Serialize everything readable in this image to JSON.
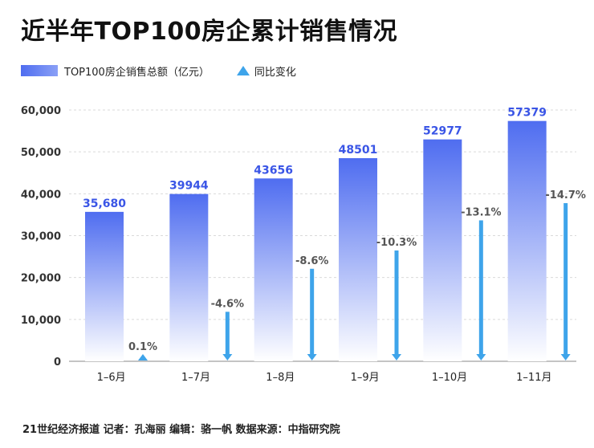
{
  "chart_data": {
    "type": "bar",
    "title": "近半年TOP100房企累计销售情况",
    "categories": [
      "1–6月",
      "1–7月",
      "1–8月",
      "1–9月",
      "1–10月",
      "1–11月"
    ],
    "series": [
      {
        "name": "TOP100房企销售总额（亿元）",
        "values": [
          35680,
          39944,
          43656,
          48501,
          52977,
          57379
        ],
        "labels": [
          "35,680",
          "39944",
          "43656",
          "48501",
          "52977",
          "57379"
        ]
      },
      {
        "name": "同比变化",
        "values": [
          0.1,
          -4.6,
          -8.6,
          -10.3,
          -13.1,
          -14.7
        ],
        "labels": [
          "0.1%",
          "-4.6%",
          "-8.6%",
          "-10.3%",
          "-13.1%",
          "-14.7%"
        ]
      }
    ],
    "yticks": [
      "0",
      "10,000",
      "20,000",
      "30,000",
      "40,000",
      "50,000",
      "60,000"
    ],
    "ylim": [
      0,
      60000
    ],
    "grid": true,
    "legend": "top-left"
  },
  "colors": {
    "bar_top": "#4f6df0",
    "bar_bottom": "#ffffff",
    "arrow": "#3ea4ea",
    "bar_label": "#3a55e6",
    "change_label": "#555555",
    "grid": "#d9d9d9"
  },
  "legend": {
    "bar_label": "TOP100房企销售总额（亿元）",
    "change_label": "同比变化"
  },
  "footer": "21世纪经济报道 记者：孔海丽 编辑：骆一帆 数据来源：中指研究院"
}
